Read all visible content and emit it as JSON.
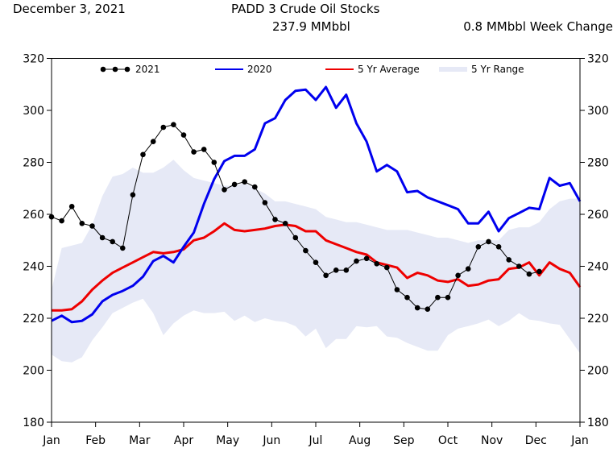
{
  "header": {
    "date": "December 3, 2021",
    "title": "PADD 3 Crude Oil Stocks",
    "subtitle": "237.9 MMbbl",
    "week_change": "0.8 MMbbl Week Change"
  },
  "chart_data": {
    "type": "line",
    "title": "PADD 3 Crude Oil Stocks",
    "xlabel": "",
    "ylabel": "",
    "x_ticks": [
      "Jan",
      "Feb",
      "Mar",
      "Apr",
      "May",
      "Jun",
      "Jul",
      "Aug",
      "Sep",
      "Oct",
      "Nov",
      "Dec",
      "Jan"
    ],
    "y_ticks": [
      180,
      200,
      220,
      240,
      260,
      280,
      300,
      320
    ],
    "ylim": [
      180,
      320
    ],
    "x_range_weeks": [
      1,
      53
    ],
    "grid": false,
    "legend_position": "top",
    "colors": {
      "y2021": "#000000",
      "y2020": "#0000ee",
      "avg5": "#ee0000",
      "range5": "#e6e9f6"
    },
    "series": [
      {
        "name": "2021",
        "style": "line-markers",
        "weeks": [
          1,
          2,
          3,
          4,
          5,
          6,
          7,
          8,
          9,
          10,
          11,
          12,
          13,
          14,
          15,
          16,
          17,
          18,
          19,
          20,
          21,
          22,
          23,
          24,
          25,
          26,
          27,
          28,
          29,
          30,
          31,
          32,
          33,
          34,
          35,
          36,
          37,
          38,
          39,
          40,
          41,
          42,
          43,
          44,
          45,
          46,
          47,
          48,
          49
        ],
        "values": [
          259,
          257.5,
          263,
          256.5,
          255.5,
          251,
          249.5,
          247,
          267.5,
          283,
          288,
          293.5,
          294.5,
          290.5,
          284,
          285,
          280,
          269.5,
          271.5,
          272.5,
          270.5,
          264.5,
          258,
          256.5,
          251,
          246,
          241.5,
          236.5,
          238.5,
          238.5,
          242,
          243,
          241,
          239.5,
          231,
          228,
          224,
          223.5,
          228,
          228,
          236.5,
          239,
          247.5,
          249.5,
          247.5,
          242.5,
          240,
          237,
          238
        ]
      },
      {
        "name": "2020",
        "style": "line",
        "weeks": [
          1,
          2,
          3,
          4,
          5,
          6,
          7,
          8,
          9,
          10,
          11,
          12,
          13,
          14,
          15,
          16,
          17,
          18,
          19,
          20,
          21,
          22,
          23,
          24,
          25,
          26,
          27,
          28,
          29,
          30,
          31,
          32,
          33,
          34,
          35,
          36,
          37,
          38,
          39,
          40,
          41,
          42,
          43,
          44,
          45,
          46,
          47,
          48,
          49,
          50,
          51,
          52,
          53
        ],
        "values": [
          219,
          221,
          218.5,
          219,
          221.5,
          226.5,
          229,
          230.5,
          232.5,
          236,
          242,
          244,
          241.5,
          247.5,
          253,
          264,
          273.5,
          280.5,
          282.5,
          282.5,
          285,
          295,
          297,
          304,
          307.5,
          308,
          304,
          309,
          301,
          306,
          295,
          288,
          276.5,
          279,
          276.5,
          268.5,
          269,
          266.5,
          265,
          263.5,
          262,
          256.5,
          256.5,
          261,
          253.5,
          258.5,
          260.5,
          262.5,
          262,
          274,
          271,
          272,
          265
        ]
      },
      {
        "name": "5 Yr Average",
        "style": "line",
        "weeks": [
          1,
          2,
          3,
          4,
          5,
          6,
          7,
          8,
          9,
          10,
          11,
          12,
          13,
          14,
          15,
          16,
          17,
          18,
          19,
          20,
          21,
          22,
          23,
          24,
          25,
          26,
          27,
          28,
          29,
          30,
          31,
          32,
          33,
          34,
          35,
          36,
          37,
          38,
          39,
          40,
          41,
          42,
          43,
          44,
          45,
          46,
          47,
          48,
          49,
          50,
          51,
          52,
          53
        ],
        "values": [
          223,
          223,
          223.5,
          226.5,
          231,
          234.5,
          237.5,
          239.5,
          241.5,
          243.5,
          245.5,
          245,
          245.5,
          246.5,
          250,
          251,
          253.5,
          256.5,
          254,
          253.5,
          254,
          254.5,
          255.5,
          256,
          255.5,
          253.5,
          253.5,
          250,
          248.5,
          247,
          245.5,
          244.5,
          241.5,
          240.5,
          239.5,
          235.5,
          237.5,
          236.5,
          234.5,
          234,
          235,
          232.5,
          233,
          234.5,
          235,
          239,
          239.5,
          241.5,
          236.5,
          241.5,
          239,
          237.5,
          232
        ]
      },
      {
        "name": "5 Yr Range",
        "style": "band",
        "weeks": [
          1,
          2,
          3,
          4,
          5,
          6,
          7,
          8,
          9,
          10,
          11,
          12,
          13,
          14,
          15,
          16,
          17,
          18,
          19,
          20,
          21,
          22,
          23,
          24,
          25,
          26,
          27,
          28,
          29,
          30,
          31,
          32,
          33,
          34,
          35,
          36,
          37,
          38,
          39,
          40,
          41,
          42,
          43,
          44,
          45,
          46,
          47,
          48,
          49,
          50,
          51,
          52,
          53
        ],
        "upper": [
          231,
          247,
          248,
          249,
          256,
          267,
          274.5,
          275.5,
          278,
          276,
          276,
          278,
          281,
          277,
          274,
          273,
          272,
          271,
          271,
          272,
          270,
          268,
          265,
          265,
          264,
          263,
          262,
          259,
          258,
          257,
          257,
          256,
          255,
          254,
          254,
          254,
          253,
          252,
          251,
          251,
          250,
          249,
          250,
          250,
          250,
          254,
          255,
          255,
          257,
          262,
          265,
          266,
          266
        ],
        "lower": [
          206,
          203.5,
          203,
          205,
          211.5,
          216.5,
          222,
          224,
          226,
          227.5,
          222,
          213.5,
          218,
          221,
          223,
          222,
          222,
          222.5,
          219,
          221,
          218.5,
          220,
          219,
          218.5,
          217,
          213,
          216,
          208.5,
          212,
          212,
          217,
          216.5,
          217,
          213,
          212.5,
          210.5,
          209,
          207.5,
          207.5,
          213.5,
          216,
          217,
          218,
          219.5,
          217,
          219,
          222,
          219.5,
          219,
          218,
          217.5,
          212,
          206.5
        ]
      }
    ]
  }
}
